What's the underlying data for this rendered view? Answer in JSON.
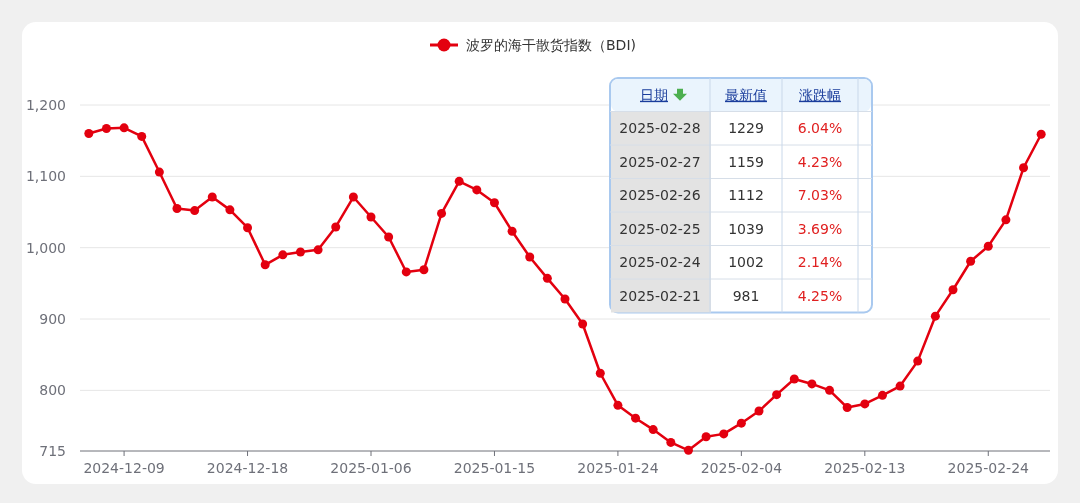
{
  "chart_data": {
    "type": "line",
    "legend": "top",
    "grid": "y",
    "marker": "circle",
    "line_style": "solid",
    "categories": [
      null,
      null,
      "2024-12-09",
      null,
      null,
      null,
      null,
      null,
      null,
      "2024-12-18",
      null,
      null,
      null,
      null,
      null,
      null,
      "2025-01-06",
      null,
      null,
      null,
      null,
      null,
      null,
      "2025-01-15",
      null,
      null,
      null,
      null,
      null,
      null,
      "2025-01-24",
      null,
      null,
      null,
      null,
      null,
      null,
      "2025-02-04",
      null,
      null,
      null,
      null,
      null,
      null,
      "2025-02-13",
      null,
      null,
      null,
      null,
      null,
      null,
      "2025-02-24",
      null,
      null,
      null
    ],
    "series": [
      {
        "name": "波罗的海干散货指数（BDI)",
        "color": "#e3000f",
        "values": [
          1160,
          1167,
          1168,
          1156,
          1106,
          1055,
          1052,
          1071,
          1053,
          1028,
          976,
          990,
          994,
          997,
          1029,
          1071,
          1043,
          1015,
          966,
          969,
          1048,
          1093,
          1081,
          1063,
          1023,
          987,
          957,
          928,
          893,
          824,
          779,
          761,
          745,
          727,
          716,
          735,
          739,
          754,
          771,
          794,
          816,
          809,
          800,
          776,
          781,
          793,
          806,
          841,
          904,
          941,
          981,
          1002,
          1039,
          1112,
          1159
        ]
      }
    ],
    "ylim": [
      715,
      1200
    ],
    "yticks": [
      715,
      800,
      900,
      {
        "value": 1000,
        "label": "1,000"
      },
      {
        "value": 1100,
        "label": "1,100"
      },
      {
        "value": 1200,
        "label": "1,200"
      }
    ],
    "annotations": [
      "日期",
      "最新值",
      "涨跌幅",
      "2025-02-28",
      "1229",
      "6.04%",
      "2025-02-27",
      "1159",
      "4.23%",
      "2025-02-26",
      "1112",
      "7.03%",
      "2025-02-25",
      "1039",
      "3.69%",
      "2025-02-24",
      "1002",
      "2.14%",
      "2025-02-21",
      "981",
      "4.25%"
    ]
  }
}
